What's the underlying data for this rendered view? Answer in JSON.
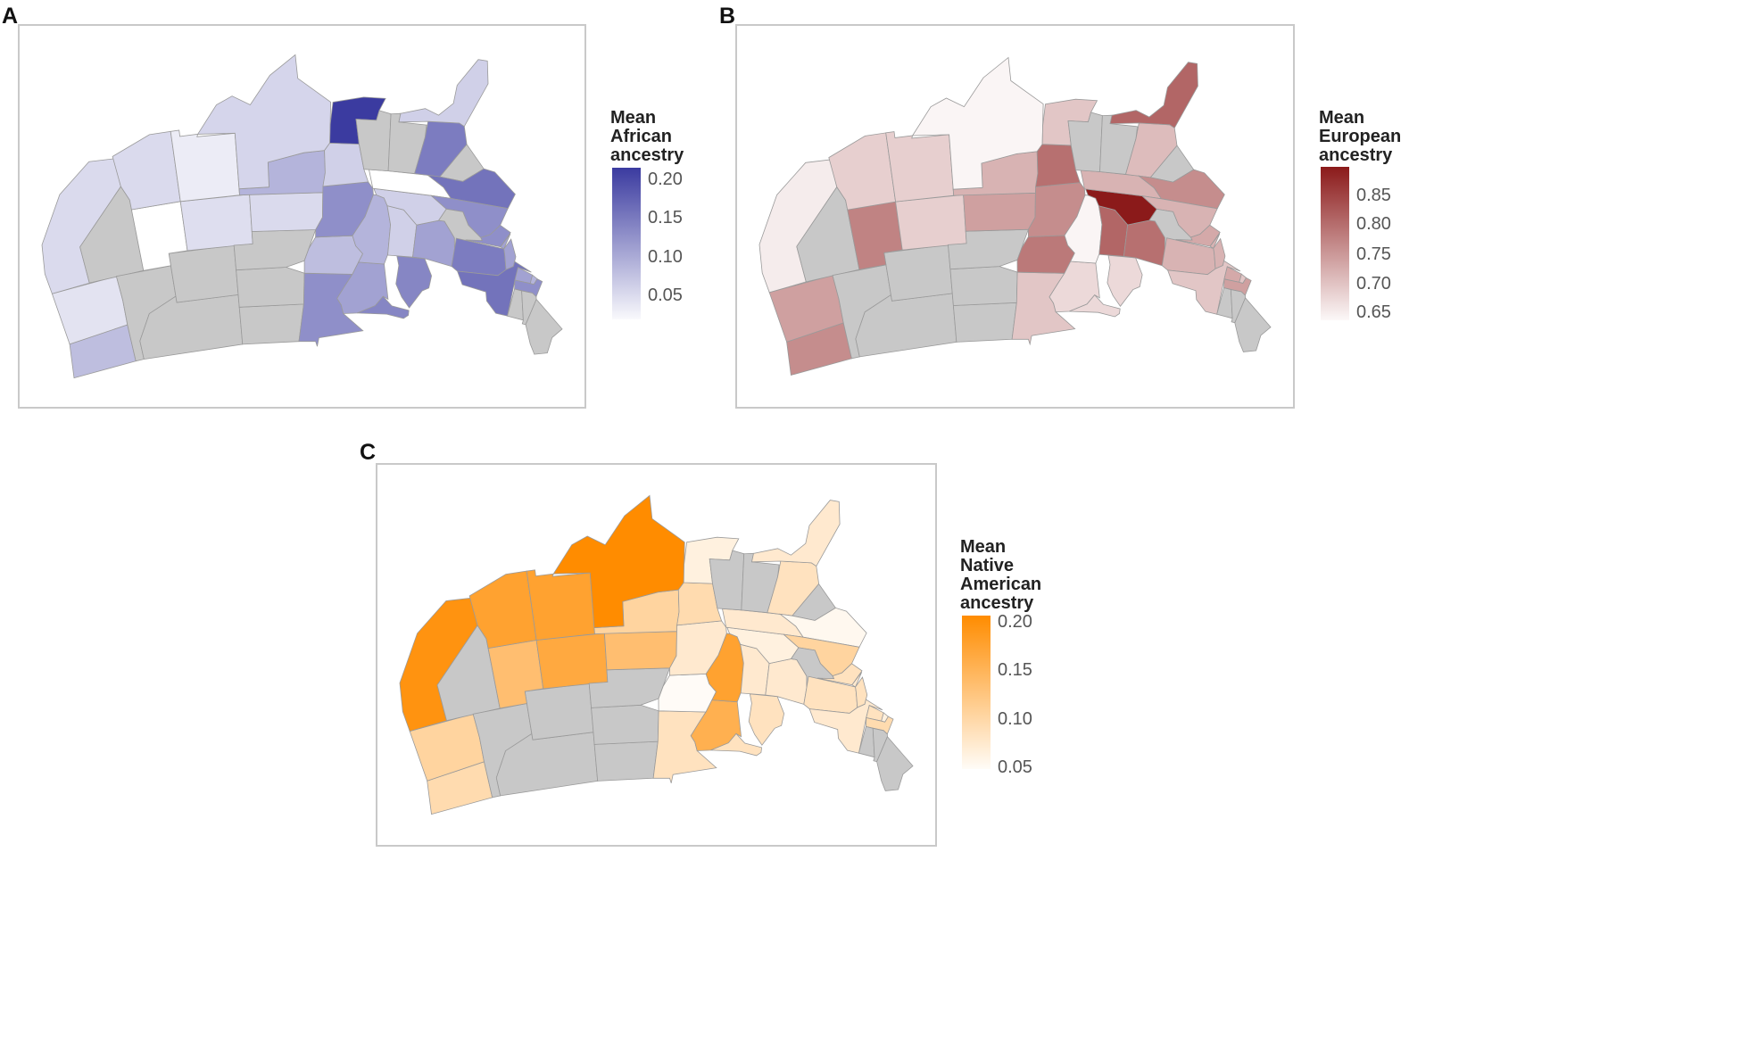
{
  "panels": [
    {
      "letter": "A",
      "legend": {
        "title": [
          "Mean",
          "African",
          "ancestry"
        ],
        "ticks": [
          "0.20",
          "0.15",
          "0.10",
          "0.05"
        ]
      },
      "scale": {
        "min": 0.0,
        "max": 0.21,
        "low_color": "#ffffff",
        "high_color": "#3b3ba0",
        "na_color": "#c8c8c8"
      },
      "values": {
        "WA": 0.07,
        "OR": 0.03,
        "CA": 0.04,
        "UT": 0.0,
        "CO": 0.035,
        "KS": 0.04,
        "AZ": 0.04,
        "NM": 0.02,
        "TX": 0.045,
        "OK": 0.08,
        "MN": 0.12,
        "WI": 0.1,
        "MI": 0.13,
        "IA": 0.07,
        "IL": 0.08,
        "IN": 0.05,
        "OH": 0.1,
        "MO": 0.12,
        "AR": 0.05,
        "LA": 0.21,
        "TN": 0.0,
        "KY": 0.05,
        "GA": 0.14,
        "FL": 0.05,
        "NC": 0.15,
        "VA": 0.12,
        "MD": 0.12,
        "DE": 0.1,
        "NJ": 0.1,
        "PA": 0.14,
        "NY": 0.15,
        "CT": 0.1,
        "RI": 0.08,
        "MA": 0.12
      }
    },
    {
      "letter": "B",
      "legend": {
        "title": [
          "Mean",
          "European",
          "ancestry"
        ],
        "ticks": [
          "0.85",
          "0.80",
          "0.75",
          "0.70",
          "0.65"
        ]
      },
      "scale": {
        "min": 0.64,
        "max": 0.88,
        "low_color": "#ffffff",
        "high_color": "#8b1a1a",
        "na_color": "#c8c8c8"
      },
      "values": {
        "WA": 0.76,
        "OR": 0.74,
        "CA": 0.66,
        "UT": 0.77,
        "CO": 0.69,
        "NM": 0.69,
        "AZ": 0.69,
        "TX": 0.65,
        "KS": 0.74,
        "OK": 0.72,
        "MN": 0.7,
        "WI": 0.68,
        "MI": 0.68,
        "IA": 0.78,
        "IL": 0.65,
        "IN": 0.8,
        "OH": 0.79,
        "KY": 0.88,
        "TN": 0.72,
        "MO": 0.76,
        "AR": 0.79,
        "LA": 0.7,
        "GA": 0.71,
        "FL": 0.8,
        "NC": 0.76,
        "VA": 0.72,
        "MD": 0.73,
        "PA": 0.72,
        "NY": 0.7,
        "NJ": 0.72,
        "MA": 0.74,
        "CT": 0.73,
        "RI": 0.7,
        "DE": 0.72
      }
    },
    {
      "letter": "C",
      "legend": {
        "title": [
          "Mean",
          "Native",
          "American",
          "ancestry"
        ],
        "ticks": [
          "0.20",
          "0.15",
          "0.10",
          "0.05"
        ]
      },
      "scale": {
        "min": 0.04,
        "max": 0.2,
        "low_color": "#ffffff",
        "high_color": "#ff8c00",
        "na_color": "#c8c8c8"
      },
      "values": {
        "WA": 0.09,
        "OR": 0.1,
        "CA": 0.19,
        "UT": 0.13,
        "CO": 0.16,
        "AZ": 0.17,
        "NM": 0.17,
        "TX": 0.2,
        "KS": 0.13,
        "OK": 0.1,
        "MN": 0.08,
        "WI": 0.15,
        "MI": 0.08,
        "IA": 0.045,
        "IL": 0.17,
        "IN": 0.07,
        "OH": 0.07,
        "MO": 0.07,
        "AR": 0.09,
        "LA": 0.06,
        "KY": 0.06,
        "TN": 0.07,
        "GA": 0.08,
        "FL": 0.07,
        "NC": 0.05,
        "VA": 0.1,
        "MD": 0.08,
        "PA": 0.08,
        "NY": 0.07,
        "NJ": 0.08,
        "MA": 0.09,
        "CT": 0.08,
        "RI": 0.06,
        "DE": 0.07
      }
    }
  ]
}
